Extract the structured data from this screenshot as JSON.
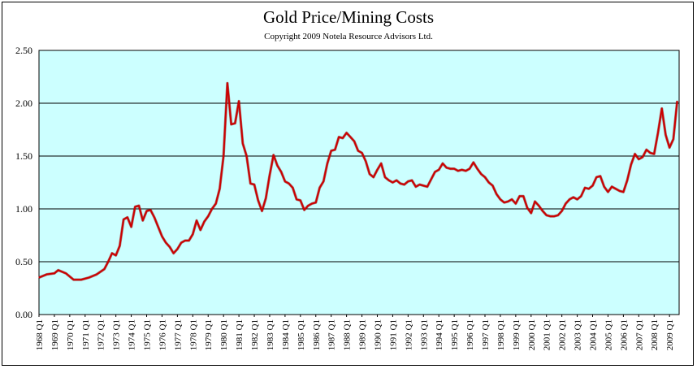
{
  "header": {
    "title": "Gold Price/Mining Costs",
    "subtitle": "Copyright 2009 Notela Resource Advisors Ltd."
  },
  "chart_data": {
    "type": "line",
    "title": "Gold Price/Mining Costs",
    "subtitle": "Copyright 2009 Notela Resource Advisors Ltd.",
    "xlabel": "",
    "ylabel": "",
    "ylim": [
      0,
      2.5
    ],
    "yticks": [
      "0.00",
      "0.50",
      "1.00",
      "1.50",
      "2.00",
      "2.50"
    ],
    "xticks": [
      "1968 Q1",
      "1969 Q1",
      "1970 Q1",
      "1971 Q1",
      "1972 Q1",
      "1973 Q1",
      "1974 Q1",
      "1975 Q1",
      "1976 Q1",
      "1977 Q1",
      "1978 Q1",
      "1979 Q1",
      "1980 Q1",
      "1981 Q1",
      "1982 Q1",
      "1983 Q1",
      "1984 Q1",
      "1985 Q1",
      "1986 Q1",
      "1987 Q1",
      "1988 Q1",
      "1989 Q1",
      "1990 Q1",
      "1991 Q1",
      "1992 Q1",
      "1993 Q1",
      "1994 Q1",
      "1995 Q1",
      "1996 Q1",
      "1997 Q1",
      "1998 Q1",
      "1999 Q1",
      "2000 Q1",
      "2001 Q1",
      "2002 Q1",
      "2003 Q1",
      "2004 Q1",
      "2005 Q1",
      "2006 Q1",
      "2007 Q1",
      "2008 Q1",
      "2009 Q1"
    ],
    "grid": true,
    "background_color": "#ccffff",
    "series": [
      {
        "color": "#cc0000",
        "points": [
          [
            "1968 Q1",
            0.35
          ],
          [
            "1968 Q3",
            0.38
          ],
          [
            "1969 Q1",
            0.39
          ],
          [
            "1969 Q2",
            0.42
          ],
          [
            "1969 Q4",
            0.39
          ],
          [
            "1970 Q2",
            0.33
          ],
          [
            "1970 Q4",
            0.33
          ],
          [
            "1971 Q2",
            0.35
          ],
          [
            "1971 Q4",
            0.38
          ],
          [
            "1972 Q2",
            0.43
          ],
          [
            "1972 Q3",
            0.5
          ],
          [
            "1972 Q4",
            0.58
          ],
          [
            "1973 Q1",
            0.56
          ],
          [
            "1973 Q2",
            0.65
          ],
          [
            "1973 Q3",
            0.9
          ],
          [
            "1973 Q4",
            0.92
          ],
          [
            "1974 Q1",
            0.83
          ],
          [
            "1974 Q2",
            1.02
          ],
          [
            "1974 Q3",
            1.03
          ],
          [
            "1974 Q4",
            0.89
          ],
          [
            "1975 Q1",
            0.98
          ],
          [
            "1975 Q2",
            0.99
          ],
          [
            "1975 Q3",
            0.92
          ],
          [
            "1975 Q4",
            0.83
          ],
          [
            "1976 Q1",
            0.74
          ],
          [
            "1976 Q2",
            0.68
          ],
          [
            "1976 Q3",
            0.64
          ],
          [
            "1976 Q4",
            0.58
          ],
          [
            "1977 Q1",
            0.62
          ],
          [
            "1977 Q2",
            0.68
          ],
          [
            "1977 Q3",
            0.7
          ],
          [
            "1977 Q4",
            0.7
          ],
          [
            "1978 Q1",
            0.76
          ],
          [
            "1978 Q2",
            0.89
          ],
          [
            "1978 Q3",
            0.8
          ],
          [
            "1978 Q4",
            0.88
          ],
          [
            "1979 Q1",
            0.93
          ],
          [
            "1979 Q2",
            1.0
          ],
          [
            "1979 Q3",
            1.05
          ],
          [
            "1979 Q4",
            1.19
          ],
          [
            "1980 Q1",
            1.5
          ],
          [
            "1980 Q2",
            2.19
          ],
          [
            "1980 Q3",
            1.8
          ],
          [
            "1980 Q4",
            1.81
          ],
          [
            "1981 Q1",
            2.02
          ],
          [
            "1981 Q2",
            1.62
          ],
          [
            "1981 Q3",
            1.5
          ],
          [
            "1981 Q4",
            1.24
          ],
          [
            "1982 Q1",
            1.23
          ],
          [
            "1982 Q2",
            1.08
          ],
          [
            "1982 Q3",
            0.98
          ],
          [
            "1982 Q4",
            1.1
          ],
          [
            "1983 Q1",
            1.32
          ],
          [
            "1983 Q2",
            1.51
          ],
          [
            "1983 Q3",
            1.41
          ],
          [
            "1983 Q4",
            1.35
          ],
          [
            "1984 Q1",
            1.26
          ],
          [
            "1984 Q2",
            1.24
          ],
          [
            "1984 Q3",
            1.2
          ],
          [
            "1984 Q4",
            1.09
          ],
          [
            "1985 Q1",
            1.08
          ],
          [
            "1985 Q2",
            0.99
          ],
          [
            "1985 Q3",
            1.03
          ],
          [
            "1985 Q4",
            1.05
          ],
          [
            "1986 Q1",
            1.06
          ],
          [
            "1986 Q2",
            1.2
          ],
          [
            "1986 Q3",
            1.26
          ],
          [
            "1986 Q4",
            1.43
          ],
          [
            "1987 Q1",
            1.55
          ],
          [
            "1987 Q2",
            1.56
          ],
          [
            "1987 Q3",
            1.68
          ],
          [
            "1987 Q4",
            1.67
          ],
          [
            "1988 Q1",
            1.72
          ],
          [
            "1988 Q2",
            1.68
          ],
          [
            "1988 Q3",
            1.64
          ],
          [
            "1988 Q4",
            1.55
          ],
          [
            "1989 Q1",
            1.53
          ],
          [
            "1989 Q2",
            1.45
          ],
          [
            "1989 Q3",
            1.33
          ],
          [
            "1989 Q4",
            1.3
          ],
          [
            "1990 Q1",
            1.37
          ],
          [
            "1990 Q2",
            1.43
          ],
          [
            "1990 Q3",
            1.3
          ],
          [
            "1990 Q4",
            1.27
          ],
          [
            "1991 Q1",
            1.25
          ],
          [
            "1991 Q2",
            1.27
          ],
          [
            "1991 Q3",
            1.24
          ],
          [
            "1991 Q4",
            1.23
          ],
          [
            "1992 Q1",
            1.26
          ],
          [
            "1992 Q2",
            1.27
          ],
          [
            "1992 Q3",
            1.21
          ],
          [
            "1992 Q4",
            1.23
          ],
          [
            "1993 Q1",
            1.22
          ],
          [
            "1993 Q2",
            1.21
          ],
          [
            "1993 Q3",
            1.28
          ],
          [
            "1993 Q4",
            1.35
          ],
          [
            "1994 Q1",
            1.37
          ],
          [
            "1994 Q2",
            1.43
          ],
          [
            "1994 Q3",
            1.39
          ],
          [
            "1994 Q4",
            1.38
          ],
          [
            "1995 Q1",
            1.38
          ],
          [
            "1995 Q2",
            1.36
          ],
          [
            "1995 Q3",
            1.37
          ],
          [
            "1995 Q4",
            1.36
          ],
          [
            "1996 Q1",
            1.38
          ],
          [
            "1996 Q2",
            1.44
          ],
          [
            "1996 Q3",
            1.38
          ],
          [
            "1996 Q4",
            1.33
          ],
          [
            "1997 Q1",
            1.3
          ],
          [
            "1997 Q2",
            1.25
          ],
          [
            "1997 Q3",
            1.22
          ],
          [
            "1997 Q4",
            1.14
          ],
          [
            "1998 Q1",
            1.09
          ],
          [
            "1998 Q2",
            1.06
          ],
          [
            "1998 Q3",
            1.07
          ],
          [
            "1998 Q4",
            1.09
          ],
          [
            "1999 Q1",
            1.05
          ],
          [
            "1999 Q2",
            1.12
          ],
          [
            "1999 Q3",
            1.12
          ],
          [
            "1999 Q4",
            1.01
          ],
          [
            "2000 Q1",
            0.96
          ],
          [
            "2000 Q2",
            1.07
          ],
          [
            "2000 Q3",
            1.03
          ],
          [
            "2000 Q4",
            0.98
          ],
          [
            "2001 Q1",
            0.94
          ],
          [
            "2001 Q2",
            0.93
          ],
          [
            "2001 Q3",
            0.93
          ],
          [
            "2001 Q4",
            0.94
          ],
          [
            "2002 Q1",
            0.98
          ],
          [
            "2002 Q2",
            1.05
          ],
          [
            "2002 Q3",
            1.09
          ],
          [
            "2002 Q4",
            1.11
          ],
          [
            "2003 Q1",
            1.09
          ],
          [
            "2003 Q2",
            1.12
          ],
          [
            "2003 Q3",
            1.2
          ],
          [
            "2003 Q4",
            1.19
          ],
          [
            "2004 Q1",
            1.22
          ],
          [
            "2004 Q2",
            1.3
          ],
          [
            "2004 Q3",
            1.31
          ],
          [
            "2004 Q4",
            1.21
          ],
          [
            "2005 Q1",
            1.16
          ],
          [
            "2005 Q2",
            1.21
          ],
          [
            "2005 Q3",
            1.19
          ],
          [
            "2005 Q4",
            1.17
          ],
          [
            "2006 Q1",
            1.16
          ],
          [
            "2006 Q2",
            1.27
          ],
          [
            "2006 Q3",
            1.42
          ],
          [
            "2006 Q4",
            1.52
          ],
          [
            "2007 Q1",
            1.47
          ],
          [
            "2007 Q2",
            1.49
          ],
          [
            "2007 Q3",
            1.56
          ],
          [
            "2007 Q4",
            1.53
          ],
          [
            "2008 Q1",
            1.52
          ],
          [
            "2008 Q2",
            1.72
          ],
          [
            "2008 Q3",
            1.95
          ],
          [
            "2008 Q4",
            1.7
          ],
          [
            "2009 Q1",
            1.58
          ],
          [
            "2009 Q2",
            1.66
          ],
          [
            "2009 Q3",
            2.02
          ]
        ]
      }
    ]
  }
}
